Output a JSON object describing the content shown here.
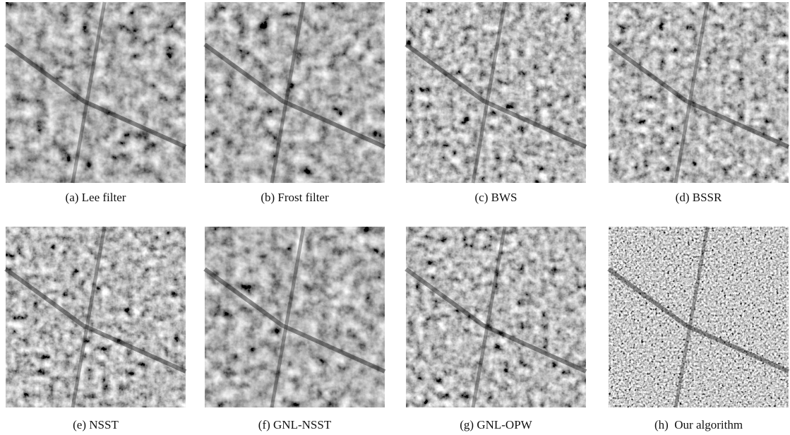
{
  "figure": {
    "panels": [
      {
        "caption": "(a) Lee filter"
      },
      {
        "caption": "(b) Frost filter"
      },
      {
        "caption": "(c) BWS"
      },
      {
        "caption": "(d) BSSR"
      },
      {
        "caption": "(e) NSST"
      },
      {
        "caption": "(f) GNL-NSST"
      },
      {
        "caption": "(g) GNL-OPW"
      },
      {
        "caption": "(h)  Our algorithm"
      }
    ]
  }
}
